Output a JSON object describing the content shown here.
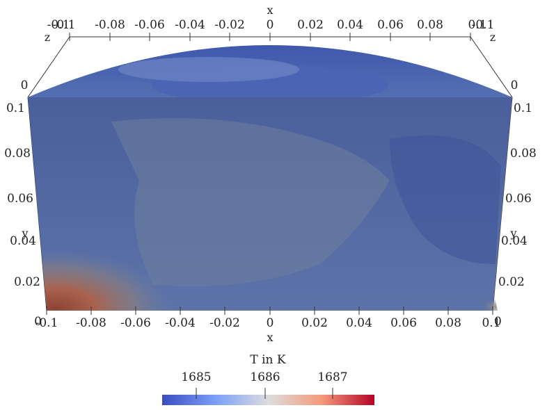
{
  "plot": {
    "axis_x_label": "x",
    "axis_y_label": "y",
    "axis_z_label": "z",
    "top_x_ticks": [
      "-0.1",
      "-0.08",
      "-0.06",
      "-0.04",
      "-0.02",
      "0",
      "0.02",
      "0.04",
      "0.06",
      "0.08",
      "0.1"
    ],
    "bottom_x_ticks": [
      "-0.1",
      "-0.08",
      "-0.06",
      "-0.04",
      "-0.02",
      "0",
      "0.02",
      "0.04",
      "0.06",
      "0.08",
      "0.1"
    ],
    "left_y_ticks": [
      "0.1",
      "0.08",
      "0.06",
      "0.04",
      "0.02",
      "0"
    ],
    "right_y_ticks": [
      "0.1",
      "0.08",
      "0.06",
      "0.04",
      "0.02",
      "0"
    ],
    "z_ticks": [
      "0",
      "-0.1"
    ],
    "colorbar": {
      "title": "T in K",
      "ticks": [
        "1685",
        "1686",
        "1687"
      ],
      "color_low": "#3b4cc0",
      "color_mid": "#dddddd",
      "color_high": "#b40426"
    }
  }
}
